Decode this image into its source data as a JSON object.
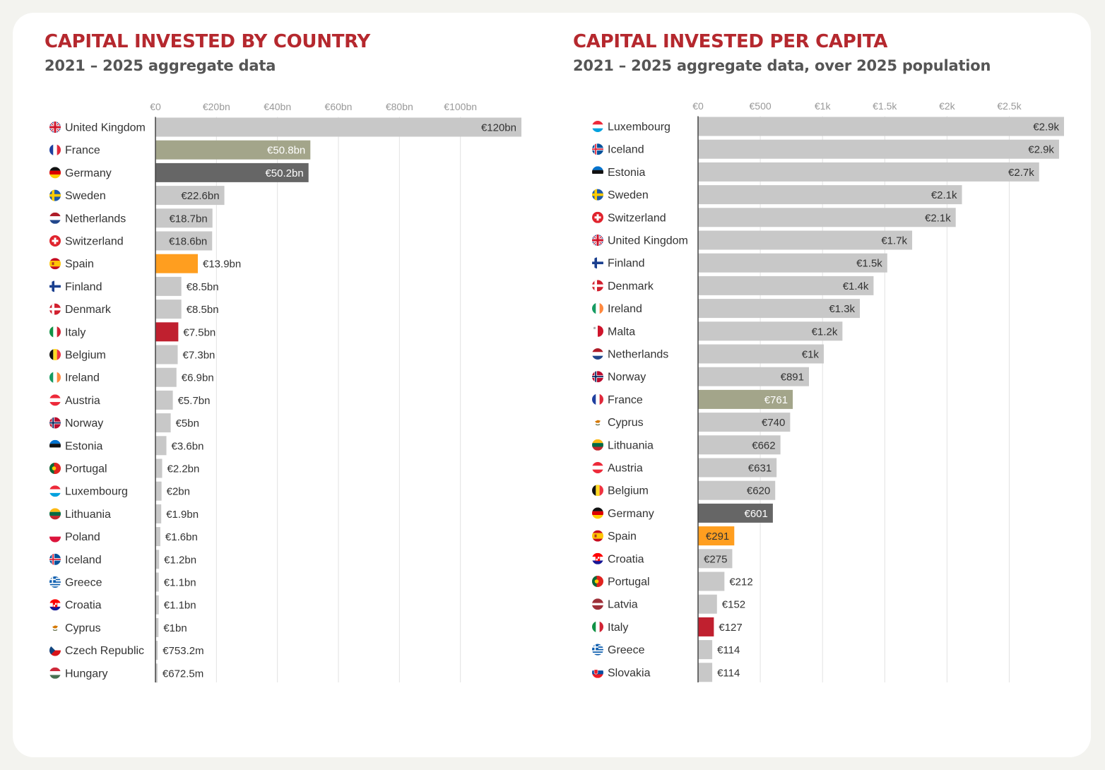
{
  "colors": {
    "title": "#b5282e",
    "subtitle": "#555555",
    "bar_default": "#c8c8c8",
    "france": "#a3a58a",
    "germany": "#666666",
    "spain": "#ff9e1f",
    "italy": "#c0202f",
    "gridline": "#e2e2e2",
    "axis": "#444444",
    "tick_label": "#999999",
    "label_dark": "#333333"
  },
  "chart_data": [
    {
      "type": "bar",
      "orientation": "horizontal",
      "title": "CAPITAL INVESTED BY COUNTRY",
      "subtitle": "2021 – 2025 aggregate data",
      "unit": "€ billions",
      "xlim": [
        0,
        120
      ],
      "ticks": [
        0,
        20,
        40,
        60,
        80,
        100
      ],
      "tick_labels": [
        "€0",
        "€20bn",
        "€40bn",
        "€60bn",
        "€80bn",
        "€100bn"
      ],
      "grid": true,
      "categories": [
        "United Kingdom",
        "France",
        "Germany",
        "Sweden",
        "Netherlands",
        "Switzerland",
        "Spain",
        "Finland",
        "Denmark",
        "Italy",
        "Belgium",
        "Ireland",
        "Austria",
        "Norway",
        "Estonia",
        "Portugal",
        "Luxembourg",
        "Lithuania",
        "Poland",
        "Iceland",
        "Greece",
        "Croatia",
        "Cyprus",
        "Czech Republic",
        "Hungary"
      ],
      "values": [
        120,
        50.8,
        50.2,
        22.6,
        18.7,
        18.6,
        13.9,
        8.5,
        8.5,
        7.5,
        7.3,
        6.9,
        5.7,
        5,
        3.6,
        2.2,
        2,
        1.9,
        1.6,
        1.2,
        1.1,
        1.1,
        1,
        0.7532,
        0.6725
      ],
      "value_labels": [
        "€120bn",
        "€50.8bn",
        "€50.2bn",
        "€22.6bn",
        "€18.7bn",
        "€18.6bn",
        "€13.9bn",
        "€8.5bn",
        "€8.5bn",
        "€7.5bn",
        "€7.3bn",
        "€6.9bn",
        "€5.7bn",
        "€5bn",
        "€3.6bn",
        "€2.2bn",
        "€2bn",
        "€1.9bn",
        "€1.6bn",
        "€1.2bn",
        "€1.1bn",
        "€1.1bn",
        "€1bn",
        "€753.2m",
        "€672.5m"
      ],
      "highlights": {
        "France": "france",
        "Germany": "germany",
        "Spain": "spain",
        "Italy": "italy"
      }
    },
    {
      "type": "bar",
      "orientation": "horizontal",
      "title": "CAPITAL INVESTED PER CAPITA",
      "subtitle": "2021 – 2025 aggregate data, over 2025 population",
      "unit": "€ per capita",
      "xlim": [
        0,
        2940
      ],
      "ticks": [
        0,
        500,
        1000,
        1500,
        2000,
        2500
      ],
      "tick_labels": [
        "€0",
        "€500",
        "€1k",
        "€1.5k",
        "€2k",
        "€2.5k"
      ],
      "grid": true,
      "categories": [
        "Luxembourg",
        "Iceland",
        "Estonia",
        "Sweden",
        "Switzerland",
        "United Kingdom",
        "Finland",
        "Denmark",
        "Ireland",
        "Malta",
        "Netherlands",
        "Norway",
        "France",
        "Cyprus",
        "Lithuania",
        "Austria",
        "Belgium",
        "Germany",
        "Spain",
        "Croatia",
        "Portugal",
        "Latvia",
        "Italy",
        "Greece",
        "Slovakia"
      ],
      "values": [
        2940,
        2900,
        2740,
        2120,
        2070,
        1720,
        1520,
        1410,
        1300,
        1160,
        1010,
        891,
        761,
        740,
        662,
        631,
        620,
        601,
        291,
        275,
        212,
        152,
        127,
        114,
        114
      ],
      "value_labels": [
        "€2.9k",
        "€2.9k",
        "€2.7k",
        "€2.1k",
        "€2.1k",
        "€1.7k",
        "€1.5k",
        "€1.4k",
        "€1.3k",
        "€1.2k",
        "€1k",
        "€891",
        "€761",
        "€740",
        "€662",
        "€631",
        "€620",
        "€601",
        "€291",
        "€275",
        "€212",
        "€152",
        "€127",
        "€114",
        "€114"
      ],
      "highlights": {
        "France": "france",
        "Germany": "germany",
        "Spain": "spain",
        "Italy": "italy"
      }
    }
  ],
  "flag_icons": {
    "United Kingdom": "uk-flag-icon",
    "France": "france-flag-icon",
    "Germany": "germany-flag-icon",
    "Sweden": "sweden-flag-icon",
    "Netherlands": "netherlands-flag-icon",
    "Switzerland": "switzerland-flag-icon",
    "Spain": "spain-flag-icon",
    "Finland": "finland-flag-icon",
    "Denmark": "denmark-flag-icon",
    "Italy": "italy-flag-icon",
    "Belgium": "belgium-flag-icon",
    "Ireland": "ireland-flag-icon",
    "Austria": "austria-flag-icon",
    "Norway": "norway-flag-icon",
    "Estonia": "estonia-flag-icon",
    "Portugal": "portugal-flag-icon",
    "Luxembourg": "luxembourg-flag-icon",
    "Lithuania": "lithuania-flag-icon",
    "Poland": "poland-flag-icon",
    "Iceland": "iceland-flag-icon",
    "Greece": "greece-flag-icon",
    "Croatia": "croatia-flag-icon",
    "Cyprus": "cyprus-flag-icon",
    "Czech Republic": "czech-flag-icon",
    "Hungary": "hungary-flag-icon",
    "Malta": "malta-flag-icon",
    "Latvia": "latvia-flag-icon",
    "Slovakia": "slovakia-flag-icon"
  }
}
